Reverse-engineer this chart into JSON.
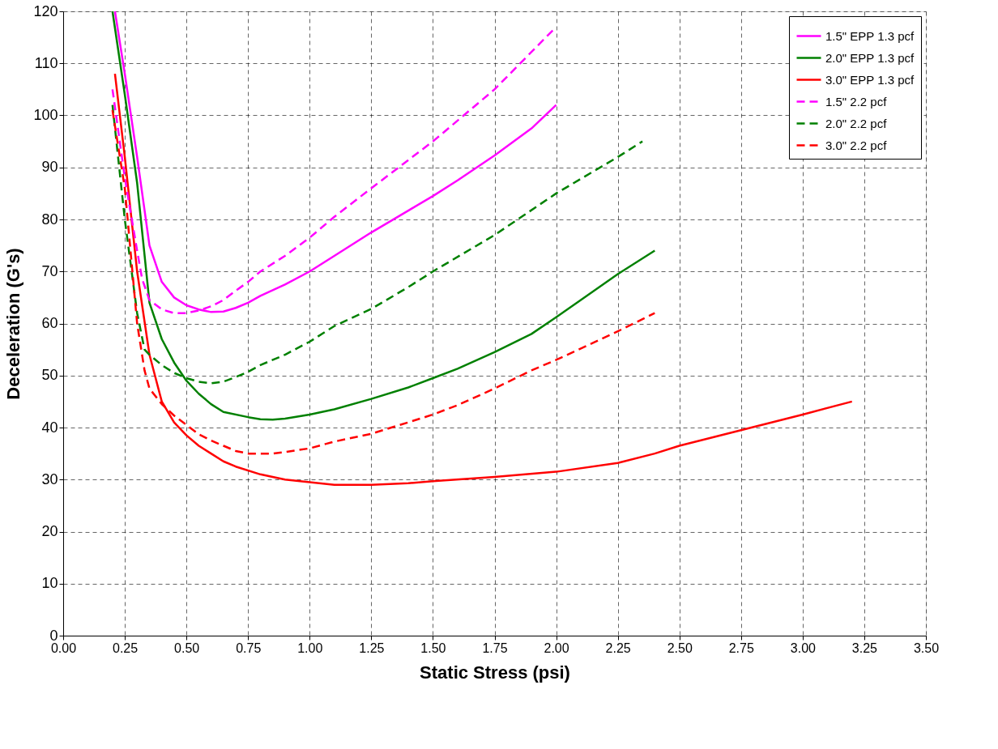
{
  "chart_data": {
    "type": "line",
    "xlabel": "Static Stress (psi)",
    "ylabel": "Deceleration (G's)",
    "xlim": [
      0,
      3.5
    ],
    "xticks": [
      {
        "value": 0,
        "label": "0.00"
      },
      {
        "value": 0.25,
        "label": "0.25"
      },
      {
        "value": 0.5,
        "label": "0.50"
      },
      {
        "value": 0.75,
        "label": "0.75"
      },
      {
        "value": 1,
        "label": "1.00"
      },
      {
        "value": 1.25,
        "label": "1.25"
      },
      {
        "value": 1.5,
        "label": "1.50"
      },
      {
        "value": 1.75,
        "label": "1.75"
      },
      {
        "value": 2,
        "label": "2.00"
      },
      {
        "value": 2.25,
        "label": "2.25"
      },
      {
        "value": 2.5,
        "label": "2.50"
      },
      {
        "value": 2.75,
        "label": "2.75"
      },
      {
        "value": 3,
        "label": "3.00"
      },
      {
        "value": 3.25,
        "label": "3.25"
      },
      {
        "value": 3.5,
        "label": "3.50"
      }
    ],
    "ylim": [
      0,
      120
    ],
    "yticks": [
      0,
      10,
      20,
      30,
      40,
      50,
      60,
      70,
      80,
      90,
      100,
      110,
      120
    ],
    "grid": true,
    "legend": "top right",
    "marker": "none",
    "series": [
      {
        "name": "1.5\" EPP 1.3 pcf",
        "color": "#ff00ff",
        "line_style": "solid",
        "x": [
          0.21,
          0.25,
          0.3,
          0.35,
          0.4,
          0.45,
          0.5,
          0.55,
          0.6,
          0.65,
          0.7,
          0.75,
          0.8,
          0.9,
          1.0,
          1.1,
          1.25,
          1.4,
          1.5,
          1.6,
          1.75,
          1.9,
          2.0
        ],
        "values": [
          120,
          108,
          92,
          75,
          68,
          65,
          63.5,
          62.7,
          62.2,
          62.3,
          63,
          64,
          65.3,
          67.5,
          70,
          73,
          77.5,
          81.7,
          84.5,
          87.5,
          92.3,
          97.5,
          102
        ]
      },
      {
        "name": "2.0\" EPP 1.3 pcf",
        "color": "#008000",
        "line_style": "solid",
        "x": [
          0.2,
          0.25,
          0.3,
          0.35,
          0.4,
          0.45,
          0.5,
          0.55,
          0.6,
          0.65,
          0.75,
          0.8,
          0.85,
          0.9,
          1.0,
          1.1,
          1.25,
          1.4,
          1.5,
          1.6,
          1.75,
          1.9,
          2.0,
          2.1,
          2.25,
          2.4
        ],
        "values": [
          120,
          104,
          87,
          64,
          57,
          52.5,
          49,
          46.5,
          44.5,
          43,
          42,
          41.6,
          41.5,
          41.7,
          42.5,
          43.5,
          45.5,
          47.7,
          49.5,
          51.3,
          54.5,
          58,
          61.2,
          64.5,
          69.5,
          74
        ]
      },
      {
        "name": "3.0\" EPP 1.3 pcf",
        "color": "#ff0000",
        "line_style": "solid",
        "x": [
          0.21,
          0.25,
          0.3,
          0.35,
          0.4,
          0.45,
          0.5,
          0.55,
          0.6,
          0.65,
          0.7,
          0.8,
          0.9,
          1.0,
          1.1,
          1.25,
          1.4,
          1.5,
          1.75,
          2.0,
          2.25,
          2.4,
          2.5,
          2.75,
          3.0,
          3.2
        ],
        "values": [
          108,
          92,
          70,
          54,
          45,
          41,
          38.5,
          36.5,
          35,
          33.5,
          32.5,
          31,
          30,
          29.5,
          29,
          29,
          29.3,
          29.7,
          30.5,
          31.5,
          33.2,
          35,
          36.5,
          39.5,
          42.5,
          45
        ]
      },
      {
        "name": "1.5\" 2.2 pcf",
        "color": "#ff00ff",
        "line_style": "dashed",
        "x": [
          0.2,
          0.25,
          0.3,
          0.32,
          0.35,
          0.4,
          0.45,
          0.5,
          0.55,
          0.6,
          0.65,
          0.7,
          0.75,
          0.8,
          0.9,
          1.0,
          1.1,
          1.25,
          1.5,
          1.75,
          2.0
        ],
        "values": [
          105,
          88,
          74,
          68.6,
          64.5,
          62.7,
          62,
          62,
          62.5,
          63.3,
          64.5,
          66.3,
          68,
          70,
          73,
          76.5,
          80.5,
          86,
          95,
          105,
          117
        ]
      },
      {
        "name": "2.0\" 2.2 pcf",
        "color": "#008000",
        "line_style": "dashed",
        "x": [
          0.2,
          0.25,
          0.3,
          0.33,
          0.35,
          0.4,
          0.45,
          0.5,
          0.55,
          0.6,
          0.65,
          0.7,
          0.75,
          0.8,
          0.9,
          1.0,
          1.1,
          1.25,
          1.4,
          1.5,
          1.75,
          2.0,
          2.25,
          2.35
        ],
        "values": [
          102,
          80,
          62,
          55,
          54,
          52,
          50.5,
          49.5,
          48.8,
          48.5,
          48.8,
          49.7,
          50.7,
          52,
          54,
          56.5,
          59.5,
          62.8,
          67,
          70,
          77,
          85,
          92,
          95
        ]
      },
      {
        "name": "3.0\" 2.2 pcf",
        "color": "#ff0000",
        "line_style": "dashed",
        "x": [
          0.2,
          0.25,
          0.3,
          0.33,
          0.35,
          0.4,
          0.45,
          0.5,
          0.55,
          0.6,
          0.65,
          0.7,
          0.75,
          0.85,
          0.9,
          1.0,
          1.1,
          1.25,
          1.4,
          1.5,
          1.6,
          1.75,
          1.9,
          2.0,
          2.25,
          2.4
        ],
        "values": [
          101,
          86,
          60,
          51,
          47.5,
          44.5,
          42.3,
          40.5,
          38.7,
          37.5,
          36.5,
          35.5,
          35,
          35,
          35.3,
          36,
          37.3,
          38.8,
          41,
          42.5,
          44.3,
          47.5,
          51,
          53,
          58.5,
          62
        ]
      }
    ]
  }
}
